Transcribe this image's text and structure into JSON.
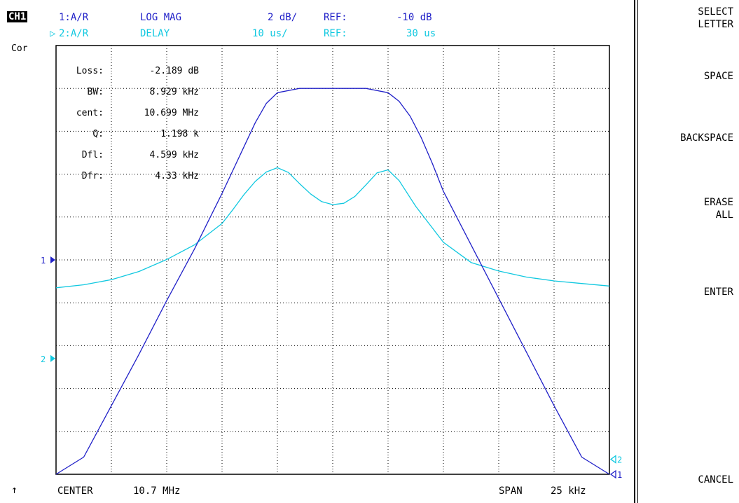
{
  "header": {
    "channel": "CH1",
    "trace1_name": "1:A/R",
    "trace1_format": "LOG MAG",
    "trace1_scale": "2 dB/",
    "trace1_ref_label": "REF:",
    "trace1_ref_value": "-10 dB",
    "trace2_name": "2:A/R",
    "trace2_format": "DELAY",
    "trace2_scale": "10 us/",
    "trace2_ref_label": "REF:",
    "trace2_ref_value": "30 us",
    "correction": "Cor"
  },
  "colors": {
    "trace1": "#2020c8",
    "trace2": "#10c8e0",
    "grid": "#000000"
  },
  "measurements": [
    {
      "label": "Loss:",
      "value": "-2.189 dB"
    },
    {
      "label": "BW:",
      "value": "8.929 kHz"
    },
    {
      "label": "cent:",
      "value": "10.699 MHz"
    },
    {
      "label": "Q:",
      "value": "1.198 k"
    },
    {
      "label": "Dfl:",
      "value": "4.599 kHz"
    },
    {
      "label": "Dfr:",
      "value": "4.33 kHz"
    }
  ],
  "footer": {
    "arrow": "↑",
    "center_label": "CENTER",
    "center_value": "10.7 MHz",
    "span_label": "SPAN",
    "span_value": "25 kHz"
  },
  "softkeys": [
    {
      "label": "SELECT\nLETTER"
    },
    {
      "label": "SPACE"
    },
    {
      "label": "BACKSPACE"
    },
    {
      "label": "ERASE\nALL"
    },
    {
      "label": "ENTER"
    },
    {
      "label": "CANCEL"
    }
  ],
  "chart_data": {
    "type": "line",
    "x_unit": "MHz",
    "x_center": 10.7,
    "x_span": 0.025,
    "xlim": [
      10.6875,
      10.7125
    ],
    "x_divisions": 10,
    "y_divisions": 10,
    "grid": true,
    "ref_markers": [
      {
        "label": "1",
        "division": 5,
        "side": "left"
      },
      {
        "label": "2",
        "division": 7.3,
        "side": "left"
      },
      {
        "label": "2",
        "division": 9.65,
        "side": "right"
      },
      {
        "label": "1",
        "division": 10,
        "side": "right"
      }
    ],
    "series": [
      {
        "scale": "2 dB/div",
        "ref": "-10 dB",
        "x": [
          10.6875,
          10.68875,
          10.69,
          10.69125,
          10.6925,
          10.69375,
          10.695,
          10.6955,
          10.696,
          10.6965,
          10.697,
          10.6975,
          10.6985,
          10.7,
          10.7015,
          10.7025,
          10.703,
          10.7035,
          10.704,
          10.7045,
          10.705,
          10.70625,
          10.7075,
          10.70875,
          10.71,
          10.71125,
          10.7125
        ],
        "y": [
          -30.4,
          -29.2,
          -26.8,
          -24.4,
          -21.9,
          -19.5,
          -16.9,
          -15.8,
          -14.7,
          -13.6,
          -12.7,
          -12.2,
          -12.0,
          -12.0,
          -12.0,
          -12.2,
          -12.6,
          -13.3,
          -14.3,
          -15.5,
          -16.8,
          -19.3,
          -21.8,
          -24.3,
          -26.8,
          -29.2,
          -30.4
        ]
      },
      {
        "scale": "10 us/div",
        "ref": "30 us",
        "x": [
          10.6875,
          10.68875,
          10.69,
          10.69125,
          10.6925,
          10.69375,
          10.695,
          10.6955,
          10.696,
          10.6965,
          10.697,
          10.6975,
          10.698,
          10.6985,
          10.699,
          10.6995,
          10.7,
          10.7005,
          10.701,
          10.7015,
          10.702,
          10.7025,
          10.703,
          10.70375,
          10.705,
          10.70625,
          10.7075,
          10.70875,
          10.71,
          10.71125,
          10.7125
        ],
        "y": [
          -26.5,
          -25.8,
          -24.6,
          -22.7,
          -19.9,
          -16.5,
          -11.5,
          -8.2,
          -4.7,
          -1.7,
          0.5,
          1.5,
          0.4,
          -2.2,
          -4.6,
          -6.4,
          -7.1,
          -6.8,
          -5.2,
          -2.5,
          0.3,
          1.0,
          -1.5,
          -7.5,
          -15.9,
          -20.6,
          -22.6,
          -24.0,
          -24.9,
          -25.5,
          -26.1
        ]
      }
    ]
  }
}
